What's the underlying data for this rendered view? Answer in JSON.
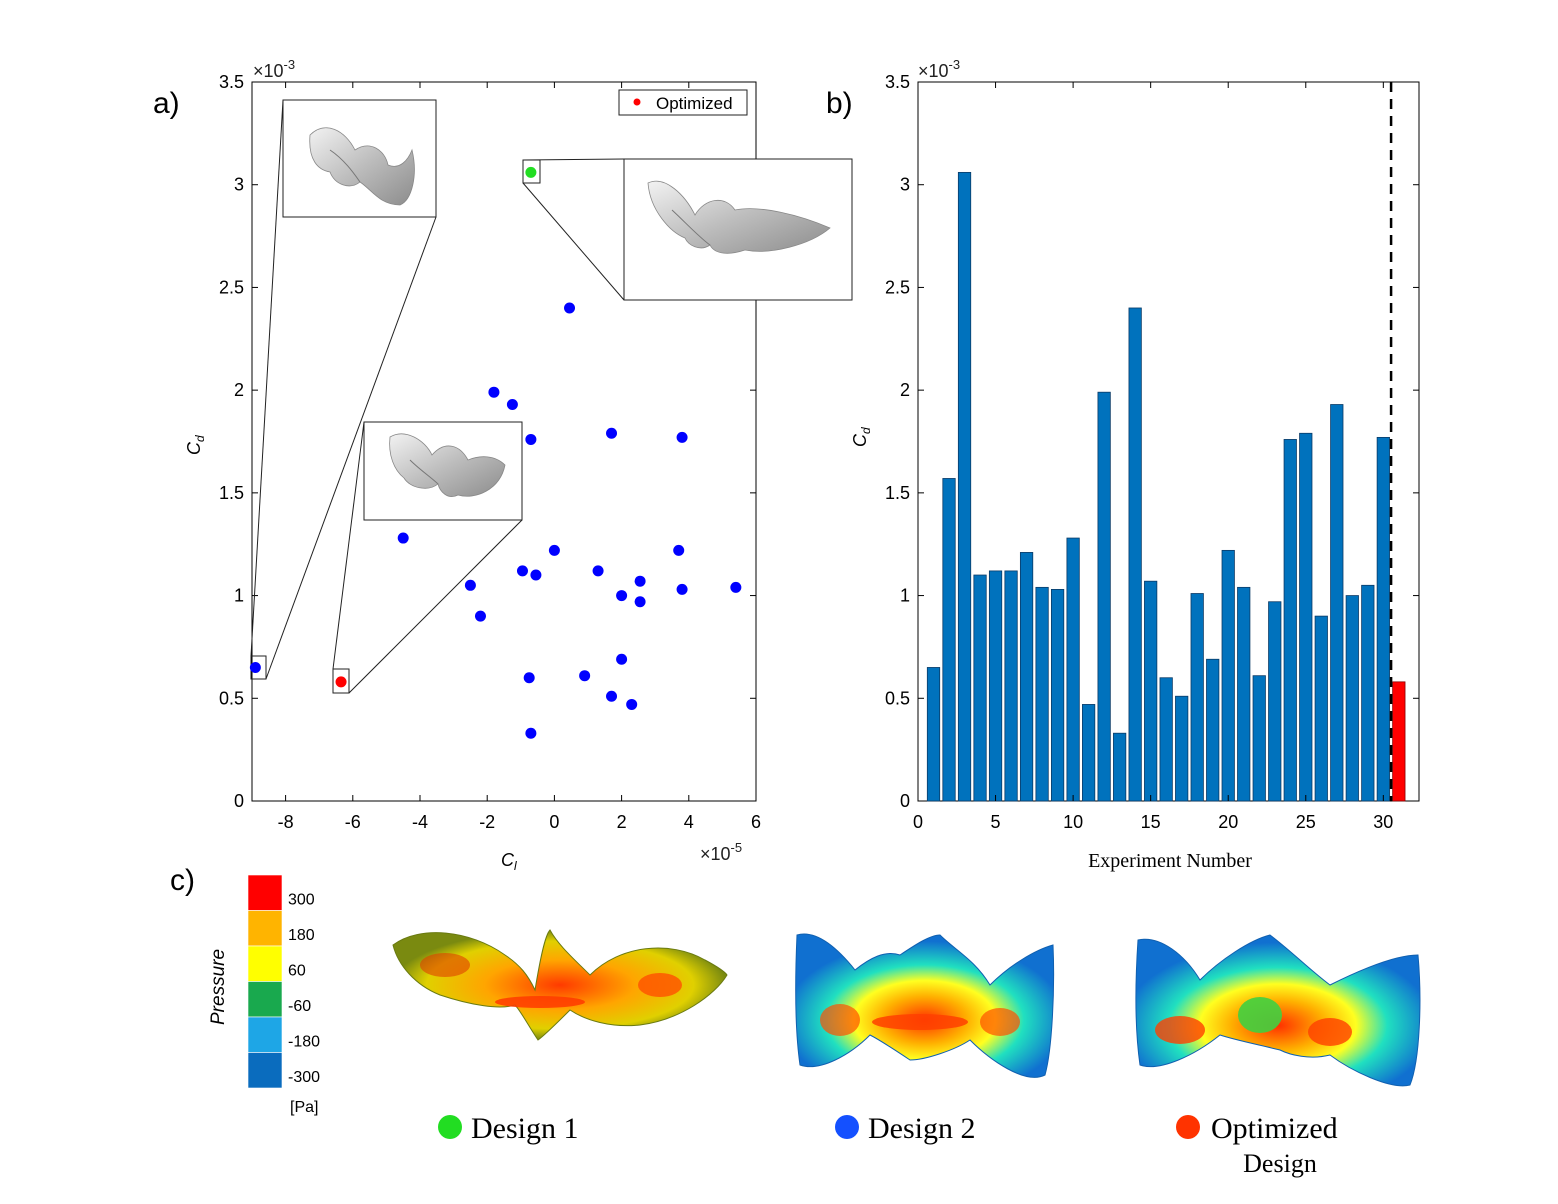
{
  "panels": {
    "a": "a)",
    "b": "b)",
    "c": "c)"
  },
  "chart_data": [
    {
      "type": "scatter",
      "panel": "a",
      "xlabel": "C",
      "xlabel_sub": "l",
      "ylabel": "C",
      "ylabel_sub": "d",
      "x_exponent": "×10",
      "x_exponent_power": "-5",
      "y_exponent": "×10",
      "y_exponent_power": "-3",
      "xlim": [
        -9,
        6
      ],
      "ylim": [
        0,
        3.5
      ],
      "xticks": [
        -8,
        -6,
        -4,
        -2,
        0,
        2,
        4,
        6
      ],
      "xtick_labels": [
        "-8",
        "-6",
        "-4",
        "-2",
        "0",
        "2",
        "4",
        "6"
      ],
      "yticks": [
        0,
        0.5,
        1,
        1.5,
        2,
        2.5,
        3,
        3.5
      ],
      "ytick_labels": [
        "0",
        "0.5",
        "1",
        "1.5",
        "2",
        "2.5",
        "3",
        "3.5"
      ],
      "legend": {
        "label": "Optimized",
        "color": "#ff0000",
        "position": "top-right"
      },
      "grid": false,
      "series": [
        {
          "color": "#0000ff",
          "points": [
            [
              -8.9,
              0.65
            ],
            [
              -4.5,
              1.28
            ],
            [
              -2.5,
              1.05
            ],
            [
              -2.2,
              0.9
            ],
            [
              -1.8,
              1.99
            ],
            [
              -1.25,
              1.93
            ],
            [
              -0.95,
              1.12
            ],
            [
              -0.7,
              1.76
            ],
            [
              -0.75,
              0.6
            ],
            [
              -0.7,
              0.33
            ],
            [
              -0.55,
              1.1
            ],
            [
              0.45,
              2.4
            ],
            [
              0.0,
              1.22
            ],
            [
              0.9,
              0.61
            ],
            [
              1.3,
              1.12
            ],
            [
              1.7,
              1.79
            ],
            [
              1.7,
              0.51
            ],
            [
              2.0,
              1.0
            ],
            [
              2.0,
              0.69
            ],
            [
              2.3,
              0.47
            ],
            [
              2.55,
              1.07
            ],
            [
              2.55,
              0.97
            ],
            [
              3.7,
              1.22
            ],
            [
              3.8,
              1.77
            ],
            [
              3.8,
              1.03
            ],
            [
              5.4,
              1.04
            ]
          ]
        },
        {
          "name": "Optimized",
          "color": "#ff0000",
          "points": [
            [
              -6.35,
              0.58
            ]
          ]
        },
        {
          "color": "#22dd22",
          "points": [
            [
              -0.7,
              3.06
            ]
          ]
        }
      ]
    },
    {
      "type": "bar",
      "panel": "b",
      "xlabel": "Experiment Number",
      "ylabel": "C",
      "ylabel_sub": "d",
      "y_exponent": "×10",
      "y_exponent_power": "-3",
      "xlim": [
        0,
        32.3
      ],
      "ylim": [
        0,
        3.5
      ],
      "xticks": [
        0,
        5,
        10,
        15,
        20,
        25,
        30
      ],
      "xtick_labels": [
        "0",
        "5",
        "10",
        "15",
        "20",
        "25",
        "30"
      ],
      "yticks": [
        0,
        0.5,
        1,
        1.5,
        2,
        2.5,
        3,
        3.5
      ],
      "ytick_labels": [
        "0",
        "0.5",
        "1",
        "1.5",
        "2",
        "2.5",
        "3",
        "3.5"
      ],
      "bar_color": "#0072bd",
      "highlight_color": "#ff0000",
      "categories": [
        1,
        2,
        3,
        4,
        5,
        6,
        7,
        8,
        9,
        10,
        11,
        12,
        13,
        14,
        15,
        16,
        17,
        18,
        19,
        20,
        21,
        22,
        23,
        24,
        25,
        26,
        27,
        28,
        29,
        30,
        31
      ],
      "values": [
        0.65,
        1.57,
        3.06,
        1.1,
        1.12,
        1.12,
        1.21,
        1.04,
        1.03,
        1.28,
        0.47,
        1.99,
        0.33,
        2.4,
        1.07,
        0.6,
        0.51,
        1.01,
        0.69,
        1.22,
        1.04,
        0.61,
        0.97,
        1.76,
        1.79,
        0.9,
        1.93,
        1.0,
        1.05,
        1.77,
        0.58
      ],
      "highlighted_index": 30,
      "divider_x": 30.5,
      "grid": false
    }
  ],
  "colorbar": {
    "title": "Pressure",
    "unit": "[Pa]",
    "levels": [
      {
        "label": "300",
        "color": "#ff0000"
      },
      {
        "label": "180",
        "color": "#ffb400"
      },
      {
        "label": "60",
        "color": "#ffff00"
      },
      {
        "label": "-60",
        "color": "#19a94e"
      },
      {
        "label": "-180",
        "color": "#1ea6e6"
      },
      {
        "label": "-300",
        "color": "#0a6cbe"
      }
    ]
  },
  "designs": [
    {
      "label": "Design 1",
      "color": "#22dd22"
    },
    {
      "label": "Design 2",
      "color": "#1450ff"
    },
    {
      "label": "Optimized",
      "label2": "Design",
      "color": "#ff3300"
    }
  ]
}
